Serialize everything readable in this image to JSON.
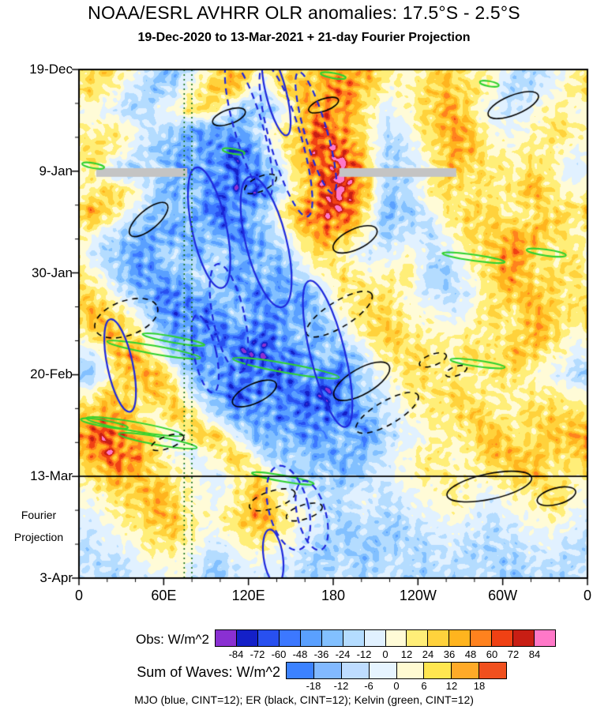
{
  "header": {
    "title": "NOAA/ESRL AVHRR OLR anomalies: 17.5°S - 2.5°S",
    "subtitle": "19-Dec-2020 to 13-Mar-2021 + 21-day Fourier Projection"
  },
  "axes": {
    "x_ticks": [
      {
        "label": "0",
        "deg": 0
      },
      {
        "label": "60E",
        "deg": 60
      },
      {
        "label": "120E",
        "deg": 120
      },
      {
        "label": "180",
        "deg": 180
      },
      {
        "label": "120W",
        "deg": 240
      },
      {
        "label": "60W",
        "deg": 300
      },
      {
        "label": "0",
        "deg": 360
      }
    ],
    "y_ticks": [
      {
        "label": "19-Dec",
        "day": 0
      },
      {
        "label": "9-Jan",
        "day": 21
      },
      {
        "label": "30-Jan",
        "day": 42
      },
      {
        "label": "20-Feb",
        "day": 63
      },
      {
        "label": "13-Mar",
        "day": 84
      },
      {
        "label": "3-Apr",
        "day": 105
      }
    ],
    "side_labels": [
      {
        "text": "Fourier",
        "day": 92
      },
      {
        "text": "Projection",
        "day": 96.5
      }
    ],
    "y_span_days": 105
  },
  "chart_data": {
    "type": "heatmap",
    "title": "NOAA/ESRL AVHRR OLR anomalies: 17.5°S - 2.5°S",
    "subtitle": "19-Dec-2020 to 13-Mar-2021 + 21-day Fourier Projection",
    "units": "W/m^2",
    "x_axis": "longitude_deg_0_to_360",
    "y_axis": "time_days_from_19-Dec-2020",
    "x_lon_start": 0,
    "x_lon_step": 15,
    "time_start_day": 0,
    "time_end_day": 105,
    "obs_end_day": 84,
    "grid": [
      [
        18,
        30,
        6,
        -18,
        -30,
        -6,
        30,
        42,
        12,
        30,
        18,
        48,
        30,
        54,
        12,
        6,
        18,
        30,
        12,
        6,
        -12,
        -24,
        -6,
        12
      ],
      [
        24,
        12,
        -12,
        -24,
        -12,
        12,
        36,
        24,
        -12,
        12,
        42,
        30,
        60,
        30,
        6,
        12,
        24,
        36,
        24,
        6,
        -18,
        -12,
        6,
        18
      ],
      [
        6,
        -6,
        -18,
        -12,
        6,
        24,
        12,
        -24,
        -36,
        -12,
        24,
        54,
        42,
        18,
        -6,
        6,
        30,
        42,
        18,
        -6,
        -12,
        6,
        12,
        6
      ],
      [
        12,
        18,
        6,
        -12,
        -24,
        -36,
        -48,
        -30,
        -12,
        18,
        36,
        60,
        48,
        12,
        -12,
        -6,
        24,
        48,
        30,
        6,
        -6,
        12,
        24,
        12
      ],
      [
        30,
        12,
        -6,
        -24,
        -42,
        -30,
        -54,
        -66,
        -30,
        6,
        42,
        66,
        72,
        24,
        -18,
        -12,
        12,
        42,
        36,
        12,
        6,
        18,
        12,
        -6
      ],
      [
        18,
        -12,
        -24,
        -12,
        -30,
        -48,
        -36,
        -60,
        -42,
        -12,
        30,
        72,
        84,
        36,
        -24,
        -18,
        6,
        30,
        24,
        18,
        12,
        24,
        6,
        -12
      ],
      [
        6,
        36,
        12,
        -18,
        -36,
        -24,
        -48,
        -66,
        -54,
        -18,
        24,
        60,
        78,
        42,
        -30,
        -12,
        12,
        24,
        18,
        12,
        24,
        36,
        18,
        6
      ],
      [
        42,
        24,
        -6,
        -30,
        -18,
        -42,
        -60,
        -48,
        -24,
        12,
        42,
        66,
        60,
        24,
        -36,
        -24,
        -6,
        18,
        30,
        24,
        12,
        18,
        30,
        24
      ],
      [
        12,
        -12,
        -24,
        -36,
        -42,
        -24,
        -36,
        -54,
        -36,
        -6,
        24,
        48,
        36,
        6,
        -24,
        -12,
        -18,
        6,
        24,
        30,
        36,
        42,
        24,
        12
      ],
      [
        -6,
        -24,
        -42,
        -30,
        -18,
        -36,
        -18,
        -30,
        -42,
        -24,
        6,
        24,
        12,
        -12,
        -6,
        6,
        -12,
        -6,
        12,
        36,
        48,
        30,
        12,
        18
      ],
      [
        12,
        -18,
        -36,
        -48,
        -30,
        -12,
        -24,
        -42,
        -24,
        -36,
        -12,
        12,
        24,
        6,
        12,
        18,
        -18,
        -24,
        6,
        30,
        42,
        24,
        18,
        24
      ],
      [
        24,
        6,
        -24,
        -42,
        -54,
        -36,
        -18,
        -36,
        -48,
        -30,
        -42,
        -12,
        18,
        24,
        18,
        6,
        -12,
        -18,
        -6,
        18,
        36,
        30,
        24,
        12
      ],
      [
        36,
        30,
        6,
        -30,
        -48,
        -60,
        -42,
        -24,
        -36,
        -54,
        -36,
        -18,
        6,
        30,
        24,
        12,
        6,
        -6,
        6,
        24,
        18,
        36,
        30,
        18
      ],
      [
        18,
        42,
        24,
        -12,
        -36,
        -42,
        -54,
        -48,
        -60,
        -42,
        -24,
        -36,
        -12,
        18,
        30,
        18,
        12,
        6,
        18,
        12,
        24,
        42,
        24,
        6
      ],
      [
        -12,
        24,
        48,
        18,
        -24,
        -48,
        -36,
        -60,
        -72,
        -54,
        -48,
        -24,
        -36,
        -12,
        18,
        24,
        18,
        12,
        24,
        18,
        36,
        24,
        12,
        -6
      ],
      [
        -24,
        6,
        36,
        42,
        6,
        -30,
        -54,
        -42,
        -60,
        -66,
        -36,
        -54,
        -48,
        -18,
        6,
        18,
        24,
        18,
        12,
        24,
        18,
        12,
        -6,
        -18
      ],
      [
        12,
        30,
        18,
        30,
        24,
        -12,
        -36,
        -60,
        -48,
        -36,
        -60,
        -72,
        -36,
        -24,
        -6,
        12,
        18,
        24,
        18,
        12,
        6,
        18,
        12,
        6
      ],
      [
        30,
        48,
        24,
        6,
        30,
        18,
        -18,
        -42,
        -30,
        -54,
        -42,
        -48,
        -60,
        -30,
        -12,
        6,
        12,
        18,
        30,
        18,
        12,
        24,
        30,
        18
      ],
      [
        54,
        66,
        42,
        18,
        -6,
        24,
        36,
        -12,
        -36,
        -24,
        -48,
        -36,
        -24,
        -42,
        -18,
        -6,
        6,
        12,
        24,
        36,
        24,
        18,
        36,
        42
      ],
      [
        36,
        72,
        54,
        24,
        6,
        -12,
        18,
        30,
        -6,
        -30,
        -18,
        -36,
        -42,
        -24,
        -12,
        6,
        18,
        6,
        12,
        30,
        42,
        30,
        24,
        30
      ],
      [
        18,
        42,
        36,
        30,
        12,
        6,
        -12,
        12,
        24,
        -12,
        -24,
        -18,
        -30,
        -18,
        -6,
        6,
        12,
        18,
        6,
        18,
        24,
        36,
        18,
        12
      ],
      [
        6,
        12,
        30,
        42,
        24,
        6,
        -6,
        18,
        36,
        12,
        -12,
        -18,
        -12,
        -6,
        -12,
        -6,
        6,
        12,
        6,
        -6,
        6,
        18,
        24,
        6
      ],
      [
        -6,
        6,
        18,
        36,
        30,
        12,
        6,
        30,
        48,
        24,
        6,
        -12,
        -18,
        -12,
        -18,
        -12,
        -6,
        6,
        -6,
        -12,
        -6,
        6,
        12,
        -6
      ],
      [
        -12,
        -6,
        6,
        18,
        24,
        6,
        -6,
        12,
        24,
        12,
        -6,
        -18,
        -24,
        -18,
        -24,
        -18,
        -12,
        -6,
        -12,
        -18,
        -12,
        -6,
        -6,
        -12
      ],
      [
        -18,
        -12,
        -6,
        6,
        12,
        -6,
        -18,
        -6,
        6,
        -6,
        -12,
        -24,
        -18,
        -24,
        -18,
        -12,
        -18,
        -12,
        -18,
        -24,
        -18,
        -12,
        -12,
        -18
      ],
      [
        -12,
        -18,
        -12,
        -6,
        6,
        -12,
        -24,
        -12,
        -6,
        -12,
        -18,
        -18,
        -12,
        -18,
        -12,
        -18,
        -24,
        -18,
        -12,
        -18,
        -24,
        -18,
        -18,
        -12
      ]
    ],
    "obs_levels": [
      -84,
      -72,
      -60,
      -48,
      -36,
      -24,
      -12,
      0,
      12,
      24,
      36,
      48,
      60,
      72,
      84
    ],
    "obs_palette": [
      "#8a30d2",
      "#1420c8",
      "#2850f0",
      "#3c78ff",
      "#5aa0ff",
      "#82c0ff",
      "#b4dcff",
      "#e1f1ff",
      "#fffbd7",
      "#ffee78",
      "#ffd23c",
      "#ffb41e",
      "#ff821e",
      "#f04114",
      "#c81e14",
      "#ff78c8"
    ],
    "waves_levels": [
      -18,
      -12,
      -6,
      0,
      6,
      12,
      18
    ],
    "waves_palette": [
      "#3c82ff",
      "#82b9ff",
      "#bedcff",
      "#e6f4ff",
      "#fffad2",
      "#ffe650",
      "#ffaa28",
      "#f0501e"
    ],
    "overlays": {
      "colors": {
        "mjo": "#1e28dc",
        "er": "#000000",
        "kelvin": "#2fd22f"
      },
      "cint": 12,
      "mjo_solid": [
        [
          0.388,
          0.047,
          0.02,
          0.085,
          -14
        ],
        [
          0.256,
          0.311,
          0.034,
          0.121,
          -12
        ],
        [
          0.368,
          0.339,
          0.04,
          0.132,
          -14
        ],
        [
          0.489,
          0.559,
          0.034,
          0.148,
          -14
        ],
        [
          0.081,
          0.582,
          0.025,
          0.093,
          -12
        ],
        [
          0.382,
          0.958,
          0.019,
          0.054,
          -8
        ]
      ],
      "mjo_dashed": [
        [
          0.334,
          0.116,
          0.028,
          0.14,
          -16
        ],
        [
          0.407,
          0.14,
          0.031,
          0.155,
          -16
        ],
        [
          0.466,
          0.124,
          0.022,
          0.124,
          -16
        ],
        [
          0.295,
          0.489,
          0.031,
          0.109,
          -12
        ],
        [
          0.248,
          0.559,
          0.022,
          0.078,
          -12
        ],
        [
          0.412,
          0.862,
          0.039,
          0.085,
          -14
        ],
        [
          0.458,
          0.877,
          0.028,
          0.07,
          -14
        ]
      ],
      "er_solid": [
        [
          0.854,
          0.07,
          0.053,
          0.019,
          -22
        ],
        [
          0.295,
          0.093,
          0.034,
          0.014,
          -20
        ],
        [
          0.481,
          0.07,
          0.031,
          0.012,
          -20
        ],
        [
          0.137,
          0.295,
          0.047,
          0.019,
          -40
        ],
        [
          0.543,
          0.334,
          0.047,
          0.02,
          -25
        ],
        [
          0.556,
          0.613,
          0.062,
          0.025,
          -30
        ],
        [
          0.345,
          0.637,
          0.047,
          0.019,
          -25
        ],
        [
          0.807,
          0.82,
          0.085,
          0.025,
          -12
        ],
        [
          0.939,
          0.839,
          0.039,
          0.016,
          -15
        ]
      ],
      "er_dashed": [
        [
          0.357,
          0.225,
          0.034,
          0.014,
          -25
        ],
        [
          0.093,
          0.489,
          0.065,
          0.034,
          -20
        ],
        [
          0.512,
          0.481,
          0.075,
          0.025,
          -32
        ],
        [
          0.606,
          0.675,
          0.07,
          0.023,
          -30
        ],
        [
          0.696,
          0.571,
          0.028,
          0.011,
          -20
        ],
        [
          0.742,
          0.593,
          0.022,
          0.009,
          -20
        ],
        [
          0.38,
          0.846,
          0.047,
          0.017,
          -18
        ],
        [
          0.443,
          0.87,
          0.037,
          0.014,
          -18
        ],
        [
          0.174,
          0.733,
          0.034,
          0.012,
          -20
        ]
      ],
      "kelvin": [
        [
          0.147,
          0.551,
          0.093,
          0.008,
          10
        ],
        [
          0.109,
          0.702,
          0.096,
          0.009,
          10
        ],
        [
          0.407,
          0.587,
          0.106,
          0.009,
          10
        ],
        [
          0.776,
          0.37,
          0.062,
          0.006,
          8
        ],
        [
          0.919,
          0.36,
          0.039,
          0.006,
          8
        ],
        [
          0.784,
          0.578,
          0.054,
          0.006,
          8
        ],
        [
          0.028,
          0.189,
          0.022,
          0.005,
          10
        ],
        [
          0.304,
          0.161,
          0.022,
          0.005,
          10
        ],
        [
          0.5,
          0.012,
          0.025,
          0.005,
          10
        ],
        [
          0.807,
          0.028,
          0.019,
          0.005,
          10
        ],
        [
          0.155,
          0.73,
          0.078,
          0.008,
          10
        ],
        [
          0.05,
          0.696,
          0.047,
          0.006,
          10
        ],
        [
          0.401,
          0.804,
          0.062,
          0.006,
          10
        ],
        [
          0.186,
          0.531,
          0.062,
          0.006,
          10
        ]
      ]
    },
    "features": {
      "projection_line_frac": 0.8,
      "dotted_lines_x": [
        0.207,
        0.222
      ],
      "dotted_color": "#0f6e14",
      "missing_color": "#c4c4c4",
      "missing_bars": [
        [
          0.034,
          0.194,
          0.179,
          0.017
        ],
        [
          0.512,
          0.194,
          0.23,
          0.017
        ]
      ]
    }
  },
  "legend": {
    "obs_label": "Obs: W/m^2",
    "obs_tick_labels": [
      "-84",
      "-72",
      "-60",
      "-48",
      "-36",
      "-24",
      "-12",
      "0",
      "12",
      "24",
      "36",
      "48",
      "60",
      "72",
      "84"
    ],
    "waves_label": "Sum of Waves: W/m^2",
    "waves_tick_labels": [
      "-18",
      "-12",
      "-6",
      "0",
      "6",
      "12",
      "18"
    ],
    "caption": "MJO (blue, CINT=12); ER (black, CINT=12); Kelvin (green, CINT=12)"
  }
}
